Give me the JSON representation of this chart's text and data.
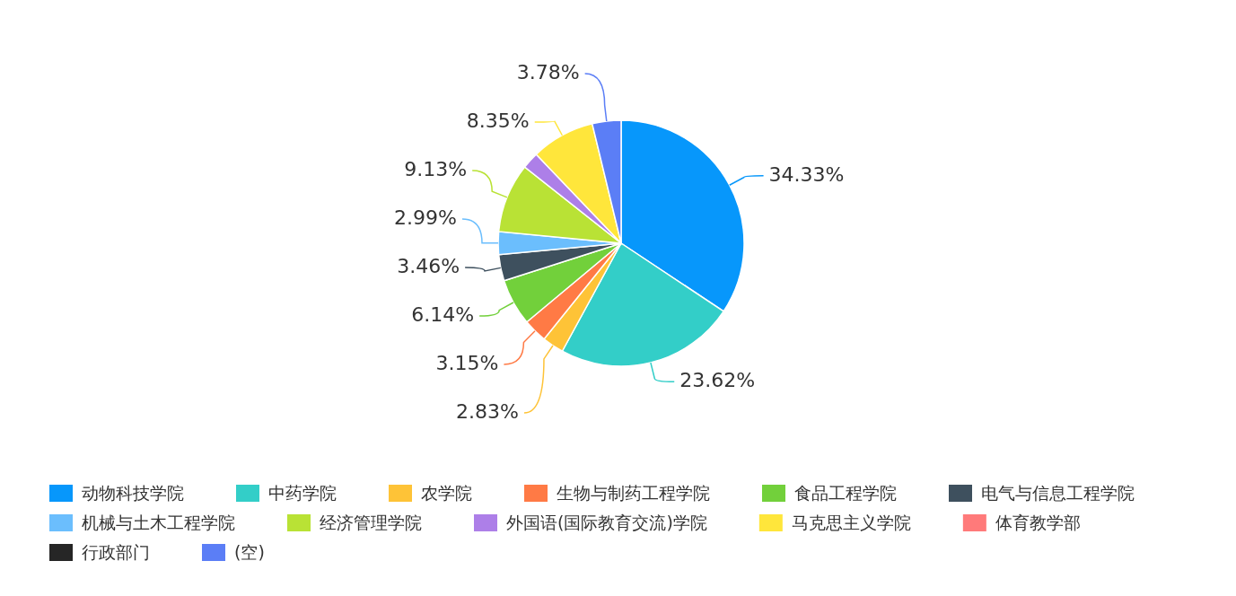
{
  "chart_data": {
    "type": "pie",
    "categories": [
      "动物科技学院",
      "中药学院",
      "农学院",
      "生物与制药工程学院",
      "食品工程学院",
      "电气与信息工程学院",
      "机械与土木工程学院",
      "经济管理学院",
      "外国语(国际教育交流)学院",
      "马克思主义学院",
      "体育教学部",
      "行政部门",
      "(空)"
    ],
    "values": [
      34.33,
      23.62,
      2.83,
      3.15,
      6.14,
      3.46,
      2.99,
      9.13,
      2.22,
      8.35,
      0,
      0,
      3.78
    ],
    "colors": [
      "#0797fb",
      "#33cec8",
      "#fec337",
      "#ff7a45",
      "#72d03b",
      "#3e505e",
      "#6bbefd",
      "#b9e235",
      "#ad7fe8",
      "#ffe63b",
      "#ff7a7a",
      "#262626",
      "#5b7ef6"
    ],
    "value_labels": [
      "34.33%",
      "23.62%",
      "2.83%",
      "3.15%",
      "6.14%",
      "3.46%",
      "2.99%",
      "9.13%",
      null,
      "8.35%",
      null,
      null,
      "3.78%"
    ],
    "legend": "bottom"
  }
}
